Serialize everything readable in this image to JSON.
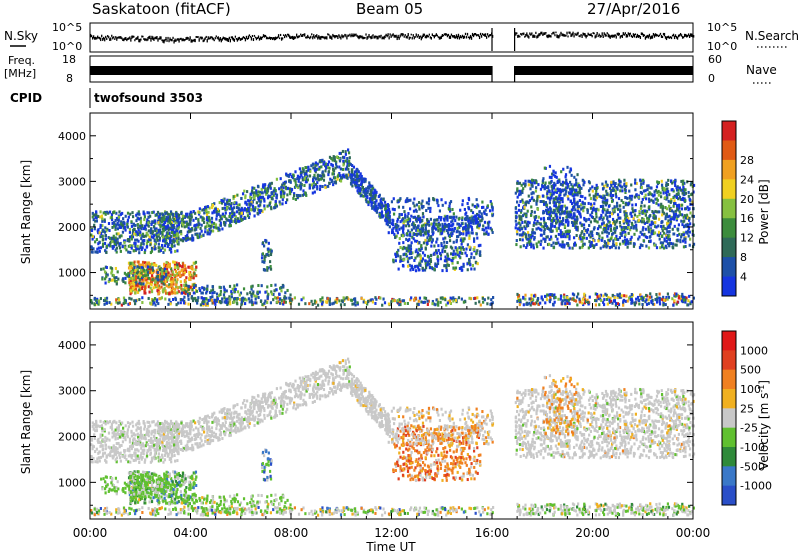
{
  "header": {
    "station": "Saskatoon (fitACF)",
    "beam": "Beam 05",
    "date": "27/Apr/2016"
  },
  "status_panels": {
    "nsky_label": "N.Sky",
    "nsky_ticks": [
      "10^5",
      "10^0"
    ],
    "nsearch_label": "N.Search",
    "nsearch_ticks": [
      "10^5",
      "10^0"
    ],
    "freq_label_1": "Freq.",
    "freq_label_2": "[MHz]",
    "freq_ticks": [
      "18",
      "8"
    ],
    "nave_label": "Nave",
    "nave_ticks": [
      "60",
      "0"
    ],
    "cpid_label": "CPID",
    "cpid_value": "twofsound 3503"
  },
  "chart_data": [
    {
      "type": "heatmap",
      "name": "power",
      "ylabel": "Slant Range [km]",
      "yticks": [
        1000,
        2000,
        3000,
        4000
      ],
      "ylim": [
        200,
        4500
      ],
      "xlim_hours": [
        0,
        24
      ],
      "data_gap_hours": [
        16.0,
        16.9
      ],
      "colorbar": {
        "label": "Power [dB]",
        "ticks": [
          "4",
          "8",
          "12",
          "16",
          "20",
          "24",
          "28"
        ],
        "colors": [
          "#1535e0",
          "#1d50a8",
          "#2f6a58",
          "#3c8c3c",
          "#86c040",
          "#f0d020",
          "#f0a020",
          "#e05a14",
          "#d42020"
        ]
      }
    },
    {
      "type": "heatmap",
      "name": "velocity",
      "ylabel": "Slant Range [km]",
      "yticks": [
        1000,
        2000,
        3000,
        4000
      ],
      "ylim": [
        200,
        4500
      ],
      "xlim_hours": [
        0,
        24
      ],
      "data_gap_hours": [
        16.0,
        16.9
      ],
      "xlabel": "Time UT",
      "xticks": [
        "00:00",
        "04:00",
        "08:00",
        "12:00",
        "16:00",
        "20:00",
        "00:00"
      ],
      "colorbar": {
        "label": "Velocity [m s",
        "label_exponent": "-1",
        "label_close": "]",
        "ticks": [
          "1000",
          "500",
          "100",
          "25",
          "-25",
          "-100",
          "-500",
          "-1000"
        ],
        "colors": [
          "#2a4fc8",
          "#3a78c8",
          "#2f8a3a",
          "#60c030",
          "#c8c8c8",
          "#f0b020",
          "#f08020",
          "#e04020",
          "#e01818"
        ]
      }
    }
  ]
}
